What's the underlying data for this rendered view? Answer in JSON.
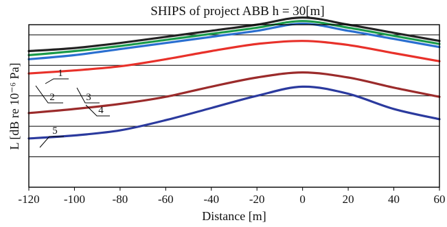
{
  "chart_data": {
    "type": "line",
    "title": "SHIPS of project ABB h = 30[m]",
    "xlabel": "Distance [m]",
    "ylabel": "L [dB re 10⁻⁶ Pa]",
    "xlim": [
      -120,
      60
    ],
    "x_ticks": [
      -120,
      -100,
      -80,
      -60,
      -40,
      -20,
      0,
      20,
      40,
      60
    ],
    "ylim": [
      0,
      8
    ],
    "grid": "horizontal",
    "series": [
      {
        "name": "1",
        "color": "#222222",
        "x": [
          -120,
          -100,
          -80,
          -60,
          -40,
          -20,
          0,
          20,
          40,
          60
        ],
        "y": [
          6.7,
          6.85,
          7.1,
          7.4,
          7.7,
          8.0,
          8.35,
          8.0,
          7.6,
          7.2
        ]
      },
      {
        "name": "2",
        "color": "#1a9a4a",
        "x": [
          -120,
          -100,
          -80,
          -60,
          -40,
          -20,
          0,
          20,
          40,
          60
        ],
        "y": [
          6.5,
          6.7,
          6.95,
          7.25,
          7.55,
          7.85,
          8.18,
          7.85,
          7.45,
          7.05
        ]
      },
      {
        "name": "3",
        "color": "#2a6fd0",
        "x": [
          -120,
          -100,
          -80,
          -60,
          -40,
          -20,
          0,
          20,
          40,
          60
        ],
        "y": [
          6.3,
          6.5,
          6.8,
          7.1,
          7.4,
          7.7,
          8.05,
          7.7,
          7.3,
          6.9
        ]
      },
      {
        "name": "4",
        "color": "#e8312a",
        "x": [
          -120,
          -100,
          -80,
          -60,
          -40,
          -20,
          0,
          20,
          40,
          60
        ],
        "y": [
          5.6,
          5.75,
          5.95,
          6.3,
          6.7,
          7.05,
          7.2,
          7.0,
          6.6,
          6.2
        ]
      },
      {
        "name": "5",
        "color": "#9b2b2b",
        "x": [
          -120,
          -100,
          -80,
          -60,
          -40,
          -20,
          0,
          20,
          40,
          60
        ],
        "y": [
          3.65,
          3.85,
          4.1,
          4.45,
          4.95,
          5.4,
          5.65,
          5.4,
          4.9,
          4.45
        ]
      },
      {
        "name": "",
        "color": "#2b3a9e",
        "x": [
          -120,
          -100,
          -80,
          -60,
          -40,
          -20,
          0,
          20,
          40,
          60
        ],
        "y": [
          2.4,
          2.55,
          2.8,
          3.3,
          3.9,
          4.5,
          4.95,
          4.6,
          3.85,
          3.35
        ]
      }
    ]
  }
}
